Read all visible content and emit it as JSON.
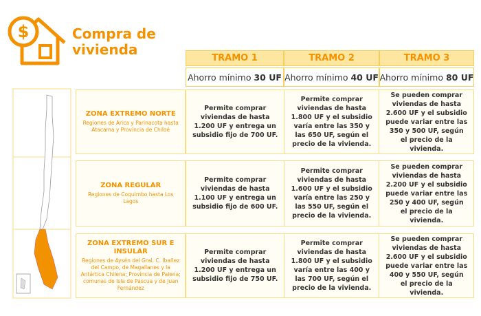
{
  "header": {
    "title": "Compra de vivienda"
  },
  "table": {
    "columns": [
      "TRAMO 1",
      "TRAMO 2",
      "TRAMO 3"
    ],
    "ahorro_label": "Ahorro mínimo",
    "ahorro": [
      "30 UF",
      "40 UF",
      "80 UF"
    ],
    "rows": [
      {
        "zone": "ZONA EXTREMO NORTE",
        "description": "Regiones de Arica y Parinacota hasta Atacama y Provincia de Chiloé",
        "cells": [
          "Permite comprar viviendas de hasta 1.200 UF y entrega un subsidio fijo de 700 UF.",
          "Permite comprar viviendas de hasta 1.800 UF y el subsidio varía entre las 350 y las 650 UF, según el precio de la vivienda.",
          "Se pueden comprar viviendas de hasta 2.600 UF y el subsidio puede variar entre las 350 y 500 UF, según el precio de la vivienda."
        ]
      },
      {
        "zone": "ZONA REGULAR",
        "description": "Regiones de Coquimbo hasta Los Lagos",
        "cells": [
          "Permite comprar viviendas de hasta 1.100 UF y entrega un subsidio fijo de 600 UF.",
          "Permite comprar viviendas de hasta 1.600 UF y el subsidio varía entre las 250 y las 550 UF, según el precio de la vivienda.",
          "Se pueden comprar viviendas de hasta 2.200 UF y el subsidio puede variar entre las 250 y 400 UF, según el precio de la vivienda."
        ]
      },
      {
        "zone": "ZONA EXTREMO SUR E INSULAR",
        "description": "Regiones de Aysén del Gral. C. Ibañez del Campo, de Magallanes y la Antártica Chilena; Provincia de Palena; comunas de Isla de Pascua y de Juan Fernández",
        "cells": [
          "Permite comprar viviendas de hasta 1.200 UF y entrega un subsidio fijo de 750 UF.",
          "Permite comprar viviendas de hasta 1.800 UF y el subsidio varía entre las 400 y las 700 UF, según el precio de la vivienda.",
          "Se pueden comprar viviendas de hasta 2.600 UF y el subsidio puede variar entre las 400 y 550 UF, según el precio de la vivienda."
        ]
      }
    ]
  }
}
